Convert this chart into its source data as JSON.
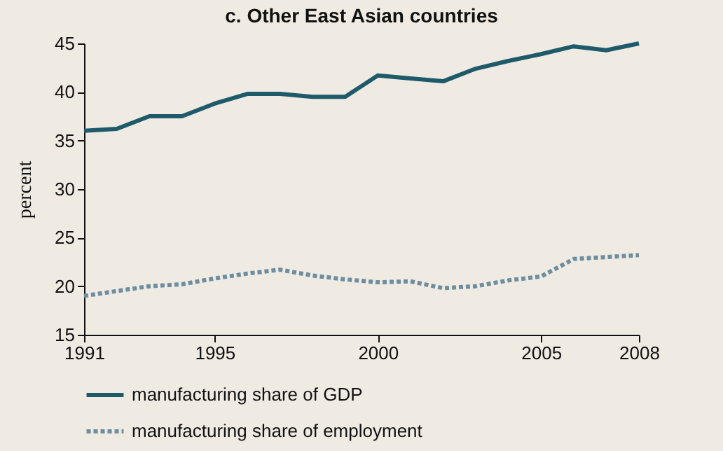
{
  "chart_data": {
    "type": "line",
    "title": "c.  Other East Asian countries",
    "ylabel": "percent",
    "x": [
      1991,
      1992,
      1993,
      1994,
      1995,
      1996,
      1997,
      1998,
      1999,
      2000,
      2001,
      2002,
      2003,
      2004,
      2005,
      2006,
      2007,
      2008
    ],
    "xlim": [
      1991,
      2008
    ],
    "xticks": [
      1991,
      1995,
      2000,
      2005,
      2008
    ],
    "ylim": [
      15,
      45
    ],
    "yticks": [
      15,
      20,
      25,
      30,
      35,
      40,
      45
    ],
    "grid": false,
    "legend": "bottom",
    "series": [
      {
        "name": "manufacturing share of GDP",
        "color": "#1f5a6b",
        "line_style": "solid",
        "values": [
          36.0,
          36.2,
          37.5,
          37.5,
          38.8,
          39.8,
          39.8,
          39.5,
          39.5,
          41.7,
          41.4,
          41.1,
          42.4,
          43.2,
          43.9,
          44.7,
          44.3,
          45.0
        ]
      },
      {
        "name": "manufacturing share of employment",
        "color": "#6e8ea0",
        "line_style": "dotted",
        "values": [
          19.0,
          19.5,
          20.0,
          20.2,
          20.8,
          21.3,
          21.7,
          21.1,
          20.7,
          20.4,
          20.5,
          19.8,
          20.0,
          20.6,
          21.0,
          22.8,
          23.0,
          23.2
        ]
      }
    ]
  }
}
